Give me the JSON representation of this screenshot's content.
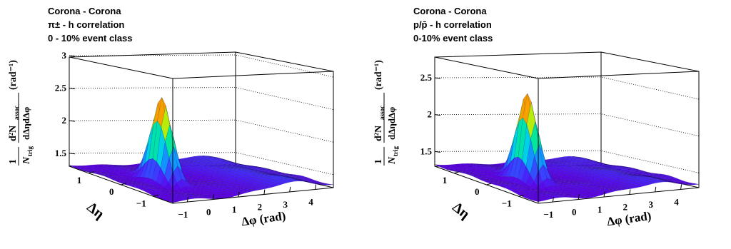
{
  "chart_data": [
    {
      "type": "surface",
      "title": "",
      "annotation": [
        "Corona - Corona",
        "π± - h correlation",
        "0 - 10% event class"
      ],
      "xlabel": "Δφ (rad)",
      "ylabel": "Δη",
      "zlabel": {
        "prefix": "1",
        "n": "N",
        "n_sub": "trig",
        "d2": "d²N",
        "d2_sub": "assoc",
        "den": "dΔηdΔφ",
        "unit": "(rad⁻¹)"
      },
      "x_ticks": [
        "−1",
        "0",
        "1",
        "2",
        "3",
        "4"
      ],
      "y_ticks": [
        "1",
        "0",
        "−1"
      ],
      "z_ticks": [
        "1.5",
        "2",
        "2.5",
        "3"
      ],
      "xlim": [
        -1.57,
        4.71
      ],
      "ylim": [
        -1.6,
        1.6
      ],
      "zlim": [
        1.3,
        3.0
      ],
      "baseline": 1.32,
      "near_side_peak": {
        "dphi": 0,
        "deta": 0,
        "height": 2.6
      },
      "away_side_ridge": {
        "dphi": 3.14,
        "height": 1.45
      }
    },
    {
      "type": "surface",
      "title": "",
      "annotation": [
        "Corona - Corona",
        "p/p̄ - h correlation",
        "0-10% event class"
      ],
      "xlabel": "Δφ (rad)",
      "ylabel": "Δη",
      "zlabel": {
        "prefix": "1",
        "n": "N",
        "n_sub": "trig",
        "d2": "d²N",
        "d2_sub": "assoc",
        "den": "dΔηdΔφ",
        "unit": "(rad⁻¹)"
      },
      "x_ticks": [
        "−1",
        "0",
        "1",
        "2",
        "3",
        "4"
      ],
      "y_ticks": [
        "1",
        "0",
        "−1"
      ],
      "z_ticks": [
        "1.5",
        "2",
        "2.5"
      ],
      "xlim": [
        -1.57,
        4.71
      ],
      "ylim": [
        -1.6,
        1.6
      ],
      "zlim": [
        1.3,
        2.8
      ],
      "baseline": 1.33,
      "near_side_peak": {
        "dphi": 0,
        "deta": 0,
        "height": 2.5
      },
      "away_side_ridge": {
        "dphi": 3.14,
        "height": 1.42
      }
    }
  ]
}
